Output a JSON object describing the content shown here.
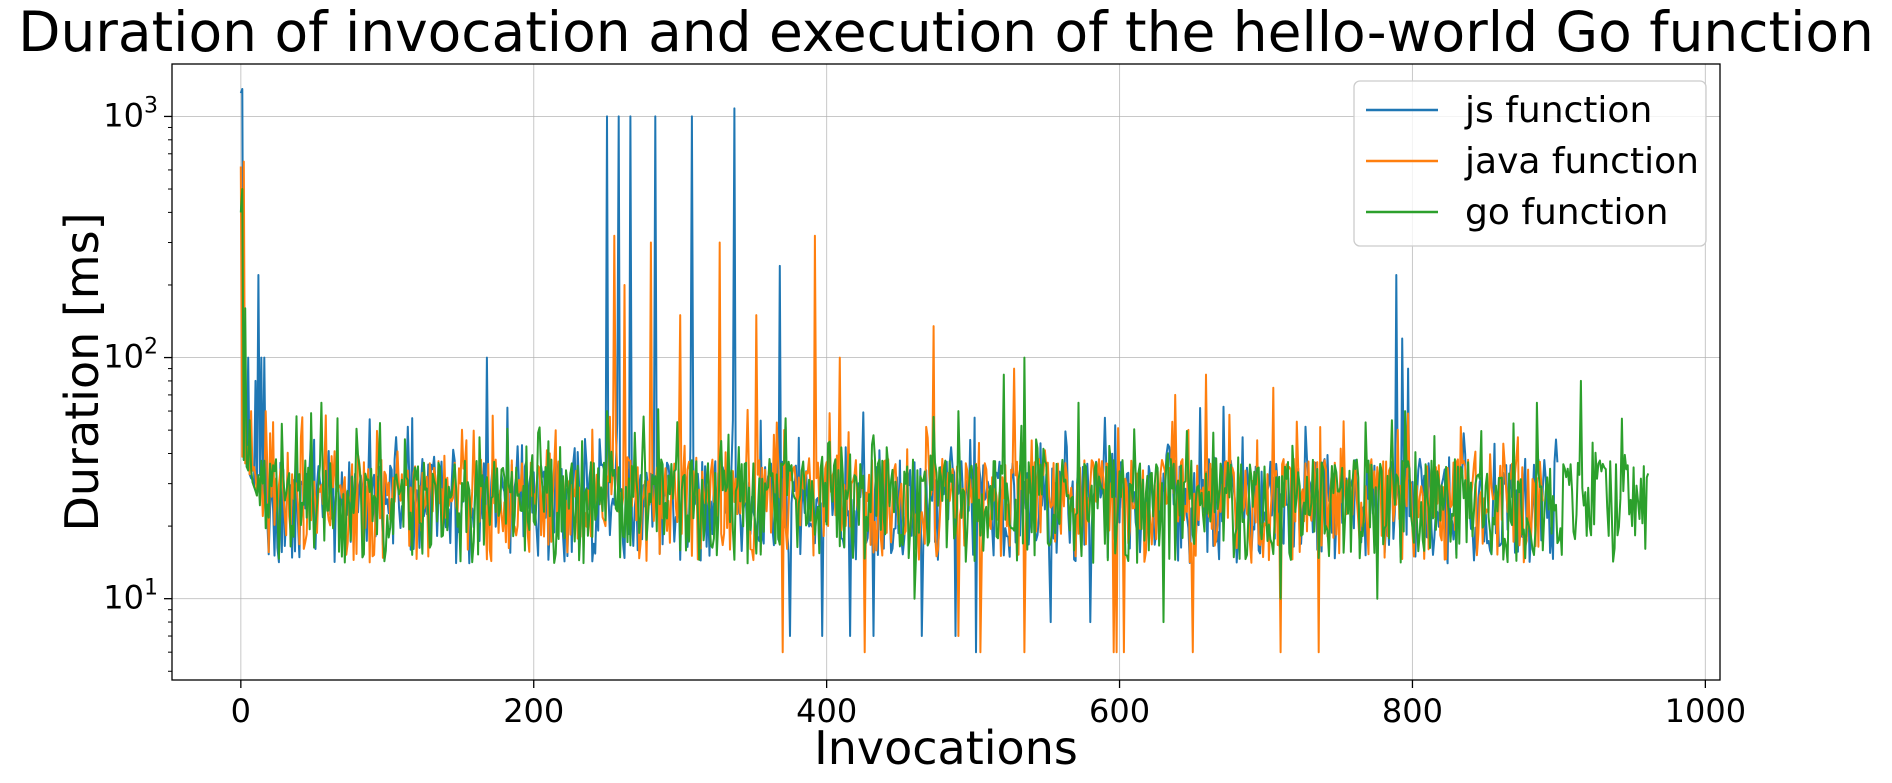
{
  "chart_data": {
    "type": "line",
    "title": "Duration of invocation and execution of the hello-world Go function",
    "xlabel": "Invocations",
    "ylabel": "Duration [ms]",
    "xlim": [
      -47,
      1010
    ],
    "ylim": [
      4.6,
      1650
    ],
    "yscale": "log",
    "grid": true,
    "legend_position": "top-right",
    "xticks": [
      "0",
      "200",
      "400",
      "600",
      "800",
      "1000"
    ],
    "xtick_values": [
      0,
      200,
      400,
      600,
      800,
      1000
    ],
    "yticks": [
      {
        "value": 10,
        "base": "10",
        "exp": "1"
      },
      {
        "value": 100,
        "base": "10",
        "exp": "2"
      },
      {
        "value": 1000,
        "base": "10",
        "exp": "3"
      }
    ],
    "series": [
      {
        "name": "js function",
        "color": "#1f77b4",
        "n_points": 900,
        "peaks": [
          [
            0,
            1250
          ],
          [
            1,
            1300
          ],
          [
            5,
            100
          ],
          [
            10,
            80
          ],
          [
            12,
            220
          ],
          [
            14,
            100
          ],
          [
            16,
            100
          ],
          [
            168,
            100
          ],
          [
            182,
            62
          ],
          [
            250,
            1000
          ],
          [
            258,
            1000
          ],
          [
            266,
            1000
          ],
          [
            283,
            1000
          ],
          [
            308,
            1000
          ],
          [
            337,
            1080
          ],
          [
            368,
            240
          ],
          [
            789,
            220
          ],
          [
            793,
            120
          ],
          [
            797,
            90
          ]
        ],
        "dips": [
          [
            375,
            7
          ],
          [
            397,
            7
          ],
          [
            416,
            7
          ],
          [
            432,
            7
          ],
          [
            465,
            7
          ],
          [
            488,
            7
          ],
          [
            502,
            6
          ],
          [
            553,
            8
          ],
          [
            580,
            8
          ]
        ]
      },
      {
        "name": "java function",
        "color": "#ff7f0e",
        "n_points": 890,
        "peaks": [
          [
            0,
            620
          ],
          [
            2,
            650
          ],
          [
            7,
            60
          ],
          [
            17,
            60
          ],
          [
            255,
            320
          ],
          [
            262,
            200
          ],
          [
            280,
            300
          ],
          [
            300,
            150
          ],
          [
            327,
            300
          ],
          [
            352,
            150
          ],
          [
            392,
            320
          ],
          [
            409,
            100
          ],
          [
            473,
            135
          ],
          [
            528,
            90
          ],
          [
            638,
            70
          ],
          [
            659,
            85
          ],
          [
            705,
            75
          ]
        ],
        "dips": [
          [
            370,
            6
          ],
          [
            426,
            6
          ],
          [
            490,
            7
          ],
          [
            505,
            6
          ],
          [
            535,
            6
          ],
          [
            596,
            6
          ],
          [
            598,
            6
          ],
          [
            603,
            6
          ],
          [
            650,
            6
          ],
          [
            710,
            6
          ],
          [
            736,
            6
          ]
        ]
      },
      {
        "name": "go function",
        "color": "#2ca02c",
        "n_points": 962,
        "peaks": [
          [
            0,
            400
          ],
          [
            1,
            500
          ],
          [
            3,
            160
          ],
          [
            6,
            55
          ],
          [
            55,
            65
          ],
          [
            210,
            45
          ],
          [
            250,
            60
          ],
          [
            490,
            60
          ],
          [
            521,
            85
          ],
          [
            535,
            100
          ],
          [
            572,
            65
          ],
          [
            786,
            55
          ],
          [
            795,
            60
          ],
          [
            885,
            65
          ],
          [
            915,
            80
          ]
        ],
        "dips": [
          [
            460,
            10
          ],
          [
            630,
            8
          ],
          [
            710,
            10
          ],
          [
            776,
            10
          ]
        ]
      }
    ]
  }
}
